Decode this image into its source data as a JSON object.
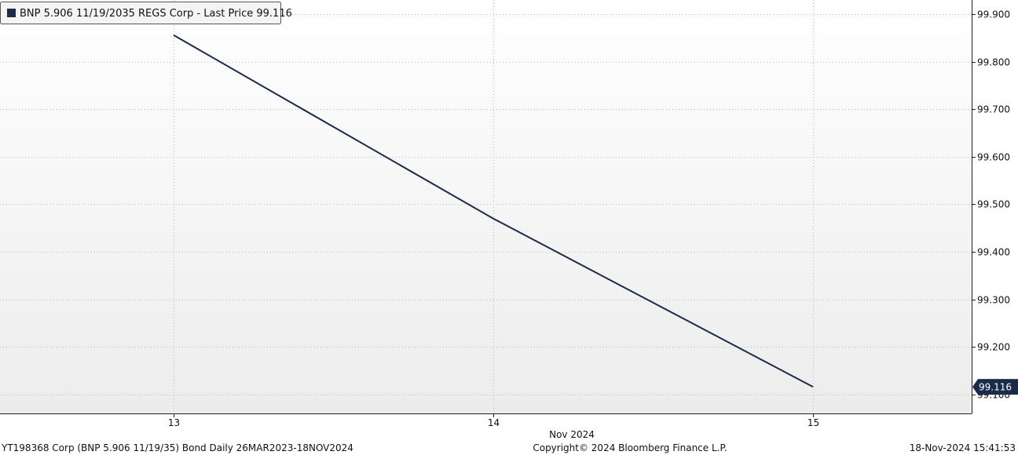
{
  "chart_data": {
    "type": "line",
    "legend": {
      "label": "BNP 5.906 11/19/2035 REGS Corp - Last Price 99.116",
      "placement": "top-left",
      "color": "#1a2c4a"
    },
    "x_ticks": [
      "13",
      "14",
      "15"
    ],
    "x_period_label": "Nov 2024",
    "y_ticks": [
      "99.900",
      "99.800",
      "99.700",
      "99.600",
      "99.500",
      "99.400",
      "99.300",
      "99.200",
      "99.100"
    ],
    "ylim": [
      99.06,
      99.93
    ],
    "series": [
      {
        "name": "BNP 5.906 11/19/2035 REGS Corp - Last Price",
        "color": "#1a2c4a",
        "x": [
          "13",
          "14",
          "15"
        ],
        "values": [
          99.856,
          99.47,
          99.116
        ]
      }
    ],
    "last_value_label": "99.116",
    "grid": true
  },
  "footer": {
    "left": "YT198368 Corp (BNP 5.906 11/19/35) Bond  Daily 26MAR2023-18NOV2024",
    "center": "Copyright© 2024 Bloomberg Finance L.P.",
    "right": "18-Nov-2024 15:41:53"
  }
}
